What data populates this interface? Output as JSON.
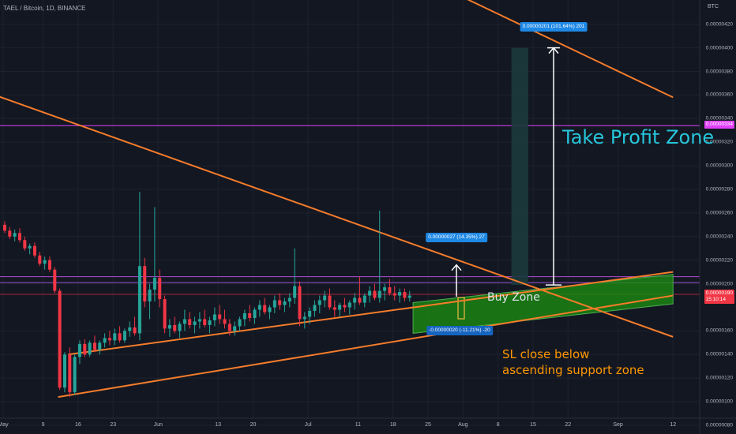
{
  "header": {
    "symbol_line": "TAEL / Bitcoin, 1D, BINANCE",
    "currency": "BTC"
  },
  "price_axis": {
    "ticks": [
      {
        "v": 420,
        "label": "0.00000420"
      },
      {
        "v": 400,
        "label": "0.00000400"
      },
      {
        "v": 380,
        "label": "0.00000380"
      },
      {
        "v": 360,
        "label": "0.00000360"
      },
      {
        "v": 340,
        "label": "0.00000340"
      },
      {
        "v": 320,
        "label": "0.00000320"
      },
      {
        "v": 300,
        "label": "0.00000300"
      },
      {
        "v": 280,
        "label": "0.00000280"
      },
      {
        "v": 260,
        "label": "0.00000260"
      },
      {
        "v": 240,
        "label": "0.00000240"
      },
      {
        "v": 220,
        "label": "0.00000220"
      },
      {
        "v": 200,
        "label": "0.00000200"
      },
      {
        "v": 160,
        "label": "0.00000160"
      },
      {
        "v": 140,
        "label": "0.00000140"
      },
      {
        "v": 120,
        "label": "0.00000120"
      },
      {
        "v": 100,
        "label": "0.00000100"
      },
      {
        "v": 80,
        "label": "0.00000080"
      }
    ],
    "pink_level_label": "0.00000334",
    "last_price_label": "0.00000190",
    "countdown_label": "15:10:14",
    "colors": {
      "pink": "#e040fb",
      "last": "#f23645"
    }
  },
  "time_axis": {
    "ticks": [
      {
        "d": 0,
        "label": "May"
      },
      {
        "d": 8,
        "label": "9"
      },
      {
        "d": 15,
        "label": "16"
      },
      {
        "d": 22,
        "label": "23"
      },
      {
        "d": 31,
        "label": "Jun"
      },
      {
        "d": 43,
        "label": "13"
      },
      {
        "d": 50,
        "label": "20"
      },
      {
        "d": 61,
        "label": "Jul"
      },
      {
        "d": 71,
        "label": "11"
      },
      {
        "d": 78,
        "label": "18"
      },
      {
        "d": 85,
        "label": "25"
      },
      {
        "d": 92,
        "label": "Aug"
      },
      {
        "d": 99,
        "label": "8"
      },
      {
        "d": 106,
        "label": "15"
      },
      {
        "d": 113,
        "label": "22"
      },
      {
        "d": 123,
        "label": "Sep"
      },
      {
        "d": 134,
        "label": "12"
      }
    ]
  },
  "measures": {
    "small": "0.00000027 (14.35%) 27",
    "large": "0.00000201 (101.64%) 201",
    "negative": "-0.00000020 (-11.21%) -20",
    "colors": {
      "box": "#1e88e5",
      "neg_box": "#1565c0"
    }
  },
  "annotations": {
    "take_profit": "Take Profit Zone",
    "buy_zone": "Buy Zone",
    "sl_line1": "SL close below",
    "sl_line2": "ascending support zone"
  },
  "colors": {
    "up": "#26a69a",
    "down": "#f23645",
    "trend": "#f57c2b",
    "buy_zone_fill": "#1b8a12",
    "tp_fill": "#1c3a3c",
    "sl_text": "#ff9800",
    "tp_text": "#26c6da"
  },
  "chart_data": {
    "type": "candlestick",
    "title": "TAEL / Bitcoin, 1D, BINANCE",
    "ylabel": "BTC",
    "y_unit": "×1e-8 BTC (0.00000001)",
    "ylim": [
      75,
      435
    ],
    "x_start": "May 1",
    "candles": [
      [
        250,
        253,
        243,
        245
      ],
      [
        245,
        248,
        238,
        240
      ],
      [
        240,
        246,
        236,
        243
      ],
      [
        243,
        247,
        235,
        237
      ],
      [
        237,
        240,
        228,
        230
      ],
      [
        230,
        234,
        225,
        232
      ],
      [
        232,
        235,
        222,
        224
      ],
      [
        224,
        227,
        215,
        217
      ],
      [
        217,
        223,
        212,
        220
      ],
      [
        220,
        223,
        210,
        212
      ],
      [
        212,
        214,
        192,
        194
      ],
      [
        194,
        196,
        110,
        112
      ],
      [
        112,
        142,
        108,
        140
      ],
      [
        140,
        146,
        104,
        108
      ],
      [
        108,
        140,
        106,
        138
      ],
      [
        138,
        152,
        132,
        149
      ],
      [
        149,
        153,
        138,
        140
      ],
      [
        140,
        152,
        138,
        150
      ],
      [
        150,
        156,
        142,
        144
      ],
      [
        144,
        152,
        140,
        150
      ],
      [
        150,
        158,
        146,
        154
      ],
      [
        154,
        160,
        148,
        152
      ],
      [
        152,
        162,
        148,
        158
      ],
      [
        158,
        164,
        150,
        152
      ],
      [
        152,
        162,
        150,
        160
      ],
      [
        160,
        168,
        155,
        163
      ],
      [
        163,
        172,
        156,
        158
      ],
      [
        158,
        278,
        152,
        215
      ],
      [
        215,
        222,
        180,
        185
      ],
      [
        185,
        200,
        170,
        195
      ],
      [
        195,
        265,
        185,
        205
      ],
      [
        205,
        212,
        180,
        187
      ],
      [
        187,
        190,
        158,
        162
      ],
      [
        162,
        170,
        155,
        165
      ],
      [
        165,
        172,
        158,
        160
      ],
      [
        160,
        168,
        154,
        166
      ],
      [
        166,
        178,
        160,
        170
      ],
      [
        170,
        176,
        162,
        165
      ],
      [
        165,
        172,
        158,
        168
      ],
      [
        168,
        176,
        162,
        170
      ],
      [
        170,
        178,
        163,
        165
      ],
      [
        165,
        172,
        158,
        169
      ],
      [
        169,
        180,
        164,
        174
      ],
      [
        174,
        182,
        166,
        170
      ],
      [
        170,
        178,
        162,
        166
      ],
      [
        166,
        170,
        156,
        160
      ],
      [
        160,
        168,
        156,
        164
      ],
      [
        164,
        172,
        160,
        170
      ],
      [
        170,
        178,
        164,
        175
      ],
      [
        175,
        182,
        168,
        171
      ],
      [
        171,
        180,
        166,
        178
      ],
      [
        178,
        186,
        172,
        182
      ],
      [
        182,
        188,
        174,
        176
      ],
      [
        176,
        182,
        170,
        180
      ],
      [
        180,
        190,
        175,
        186
      ],
      [
        186,
        192,
        178,
        182
      ],
      [
        182,
        188,
        176,
        185
      ],
      [
        185,
        192,
        180,
        188
      ],
      [
        188,
        230,
        183,
        198
      ],
      [
        198,
        202,
        164,
        170
      ],
      [
        170,
        176,
        162,
        172
      ],
      [
        172,
        180,
        166,
        177
      ],
      [
        177,
        186,
        172,
        182
      ],
      [
        182,
        190,
        175,
        186
      ],
      [
        186,
        194,
        180,
        190
      ],
      [
        190,
        196,
        178,
        180
      ],
      [
        180,
        186,
        172,
        178
      ],
      [
        178,
        184,
        172,
        182
      ],
      [
        182,
        188,
        176,
        180
      ],
      [
        180,
        186,
        174,
        184
      ],
      [
        184,
        192,
        178,
        188
      ],
      [
        188,
        206,
        182,
        184
      ],
      [
        184,
        192,
        180,
        190
      ],
      [
        190,
        198,
        184,
        194
      ],
      [
        194,
        200,
        186,
        188
      ],
      [
        188,
        262,
        184,
        194
      ],
      [
        194,
        200,
        186,
        197
      ],
      [
        197,
        204,
        190,
        192
      ],
      [
        192,
        198,
        186,
        190
      ],
      [
        190,
        196,
        184,
        193
      ],
      [
        193,
        196,
        185,
        188
      ],
      [
        188,
        194,
        185,
        190
      ]
    ],
    "horizontal_levels": [
      334,
      206,
      201,
      191
    ],
    "trendlines": [
      {
        "name": "upper descending",
        "from": [
          -5,
          365
        ],
        "to": [
          134,
          155
        ]
      },
      {
        "name": "top descending",
        "from": [
          86,
          455
        ],
        "to": [
          134,
          358
        ]
      },
      {
        "name": "ascending support",
        "from": [
          13,
          140
        ],
        "to": [
          134,
          210
        ]
      },
      {
        "name": "lower ascending",
        "from": [
          11,
          104
        ],
        "to": [
          134,
          190
        ]
      }
    ],
    "measures": [
      {
        "label": "0.00000027 (14.35%) 27",
        "x": 84,
        "from": 189,
        "to": 216
      },
      {
        "label": "0.00000201 (101.64%) 201",
        "x": 104,
        "from": 199,
        "to": 400
      },
      {
        "label": "-0.00000020 (-11.21%) -20",
        "x": 88,
        "from": 178,
        "to": 158
      }
    ],
    "zones": [
      {
        "name": "Buy Zone",
        "poly": [
          [
            82,
            184
          ],
          [
            134,
            208
          ],
          [
            134,
            183
          ],
          [
            82,
            158
          ]
        ]
      },
      {
        "name": "Take Profit Zone",
        "x": [
          102,
          106
        ],
        "y": [
          199,
          400
        ]
      }
    ]
  }
}
